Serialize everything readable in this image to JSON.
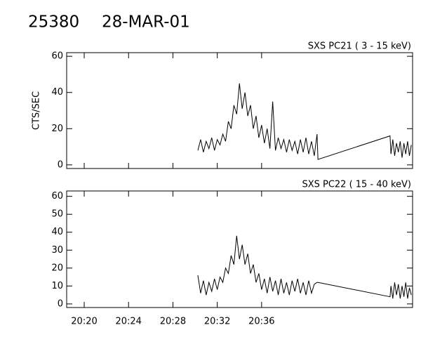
{
  "title_id": "25380",
  "title_date": "28-MAR-01",
  "chart_data": [
    {
      "type": "line",
      "title": "SXS PC21  (  3 - 15 keV)",
      "y_label": "CTS/SEC",
      "color": "#000000",
      "x": [
        "20:30:15",
        "20:30:30",
        "20:30:45",
        "20:31:00",
        "20:31:15",
        "20:31:30",
        "20:31:45",
        "20:32:00",
        "20:32:15",
        "20:32:30",
        "20:32:45",
        "20:33:00",
        "20:33:15",
        "20:33:30",
        "20:33:45",
        "20:34:00",
        "20:34:15",
        "20:34:30",
        "20:34:45",
        "20:35:00",
        "20:35:15",
        "20:35:30",
        "20:35:45",
        "20:36:00",
        "20:36:15",
        "20:36:30",
        "20:36:45",
        "20:37:00",
        "20:37:15",
        "20:37:30",
        "20:37:45",
        "20:38:00",
        "20:38:15",
        "20:38:30",
        "20:38:45",
        "20:39:00",
        "20:39:15",
        "20:39:30",
        "20:39:45",
        "20:40:00",
        "20:40:15",
        "20:40:30",
        "20:40:45",
        "20:41:00",
        "20:41:05",
        "20:47:35",
        "20:47:40",
        "20:47:50",
        "20:48:00",
        "20:48:10",
        "20:48:20",
        "20:48:30",
        "20:48:40",
        "20:48:50",
        "20:49:00",
        "20:49:10",
        "20:49:20",
        "20:49:30"
      ],
      "values": [
        8,
        14,
        7,
        13,
        9,
        15,
        8,
        14,
        11,
        17,
        13,
        24,
        20,
        33,
        28,
        45,
        31,
        40,
        27,
        33,
        20,
        27,
        15,
        22,
        12,
        20,
        9,
        35,
        8,
        15,
        9,
        14,
        7,
        14,
        8,
        13,
        6,
        14,
        7,
        15,
        6,
        13,
        5,
        17,
        3,
        16,
        6,
        14,
        5,
        12,
        7,
        13,
        4,
        12,
        6,
        13,
        5,
        11
      ],
      "xlim": [
        "20:18:25",
        "20:49:37"
      ],
      "ylim": [
        -2,
        62
      ],
      "yticks": [
        0,
        20,
        40,
        60
      ]
    },
    {
      "type": "line",
      "title": "SXS PC22  ( 15 - 40 keV)",
      "color": "#000000",
      "x": [
        "20:30:15",
        "20:30:30",
        "20:30:45",
        "20:31:00",
        "20:31:15",
        "20:31:30",
        "20:31:45",
        "20:32:00",
        "20:32:15",
        "20:32:30",
        "20:32:45",
        "20:33:00",
        "20:33:15",
        "20:33:30",
        "20:33:45",
        "20:34:00",
        "20:34:15",
        "20:34:30",
        "20:34:45",
        "20:35:00",
        "20:35:15",
        "20:35:30",
        "20:35:45",
        "20:36:00",
        "20:36:15",
        "20:36:30",
        "20:36:45",
        "20:37:00",
        "20:37:15",
        "20:37:30",
        "20:37:45",
        "20:38:00",
        "20:38:15",
        "20:38:30",
        "20:38:45",
        "20:39:00",
        "20:39:15",
        "20:39:30",
        "20:39:45",
        "20:40:00",
        "20:40:15",
        "20:40:30",
        "20:40:45",
        "20:41:00",
        "20:41:05",
        "20:47:35",
        "20:47:40",
        "20:47:50",
        "20:48:00",
        "20:48:10",
        "20:48:20",
        "20:48:30",
        "20:48:40",
        "20:48:50",
        "20:49:00",
        "20:49:10",
        "20:49:20",
        "20:49:30"
      ],
      "values": [
        16,
        6,
        13,
        5,
        12,
        7,
        14,
        8,
        15,
        12,
        20,
        17,
        27,
        22,
        38,
        25,
        33,
        22,
        28,
        17,
        22,
        12,
        17,
        8,
        14,
        6,
        15,
        7,
        13,
        5,
        14,
        6,
        12,
        5,
        13,
        7,
        14,
        6,
        12,
        5,
        13,
        6,
        11,
        12,
        12,
        4,
        10,
        3,
        12,
        5,
        11,
        3,
        10,
        4,
        12,
        3,
        9,
        5
      ],
      "xlim": [
        "20:18:25",
        "20:49:37"
      ],
      "ylim": [
        -2,
        63
      ],
      "yticks": [
        0,
        10,
        20,
        30,
        40,
        50,
        60
      ],
      "xticks": [
        "20:20",
        "20:24",
        "20:28",
        "20:32",
        "20:36"
      ]
    }
  ]
}
